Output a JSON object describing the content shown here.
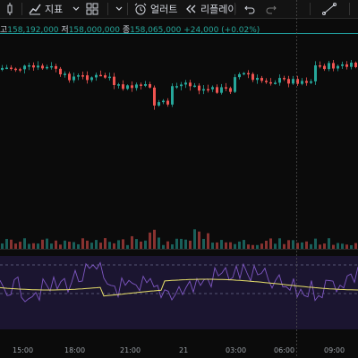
{
  "toolbar": {
    "indicators_label": "지표",
    "alert_label": "얼러트",
    "replay_label": "리플레이"
  },
  "ohlc": {
    "high_label": "고",
    "high_value": "158,192,000",
    "low_label": "저",
    "low_value": "158,000,000",
    "close_label": "종",
    "close_value": "158,065,000",
    "change": "+24,000 (+0.02%)"
  },
  "time_axis": [
    "15:00",
    "18:00",
    "21:00",
    "21",
    "03:00",
    "06:00",
    "09:00"
  ],
  "colors": {
    "up": "#26a69a",
    "down": "#ef5350",
    "accent": "#22a5a5",
    "rsi_line": "#7e57c2",
    "rsi_ma": "#e8e06a"
  }
}
